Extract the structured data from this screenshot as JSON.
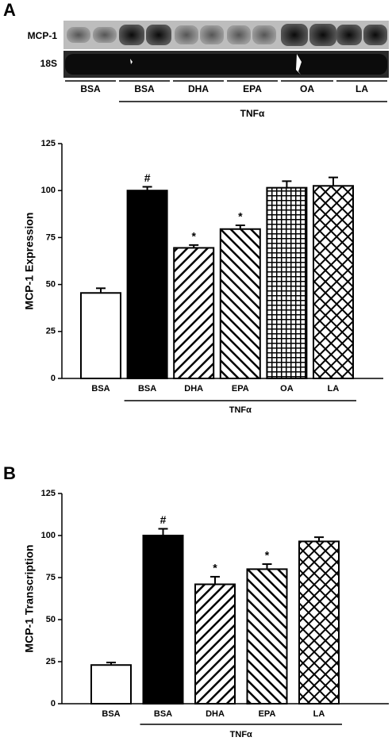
{
  "panels": [
    "A",
    "B"
  ],
  "blot": {
    "rows": [
      "MCP-1",
      "18S"
    ],
    "lanes": [
      "BSA",
      "BSA",
      "DHA",
      "EPA",
      "OA",
      "LA"
    ],
    "group_label": "TNFα"
  },
  "chart_data": [
    {
      "type": "bar",
      "y_label": "MCP-1 Expression",
      "categories": [
        "BSA",
        "BSA",
        "DHA",
        "EPA",
        "OA",
        "LA"
      ],
      "values": [
        45.5,
        100,
        69.5,
        79.5,
        101.5,
        102.5
      ],
      "errors": [
        2.5,
        2,
        1.5,
        2,
        3.5,
        4.5
      ],
      "bar_labels": [
        null,
        "#",
        "*",
        "*",
        null,
        null
      ],
      "patterns": [
        "open",
        "solid",
        "hatch-forward",
        "hatch-back",
        "grid",
        "cross"
      ],
      "group_label": "TNFα",
      "color": "#000000",
      "ylim": [
        0,
        125
      ],
      "yticks": [
        0,
        25,
        50,
        75,
        100,
        125
      ]
    },
    {
      "type": "bar",
      "y_label": "MCP-1 Transcription",
      "categories": [
        "BSA",
        "BSA",
        "DHA",
        "EPA",
        "LA"
      ],
      "values": [
        23,
        100,
        71,
        80,
        96.5
      ],
      "errors": [
        1.5,
        4,
        4.5,
        3,
        2.5
      ],
      "bar_labels": [
        null,
        "#",
        "*",
        "*",
        null
      ],
      "patterns": [
        "open",
        "solid",
        "hatch-forward",
        "hatch-back",
        "cross"
      ],
      "group_label": "TNFα",
      "color": "#000000",
      "ylim": [
        0,
        125
      ],
      "yticks": [
        0,
        25,
        50,
        75,
        100,
        125
      ]
    }
  ]
}
